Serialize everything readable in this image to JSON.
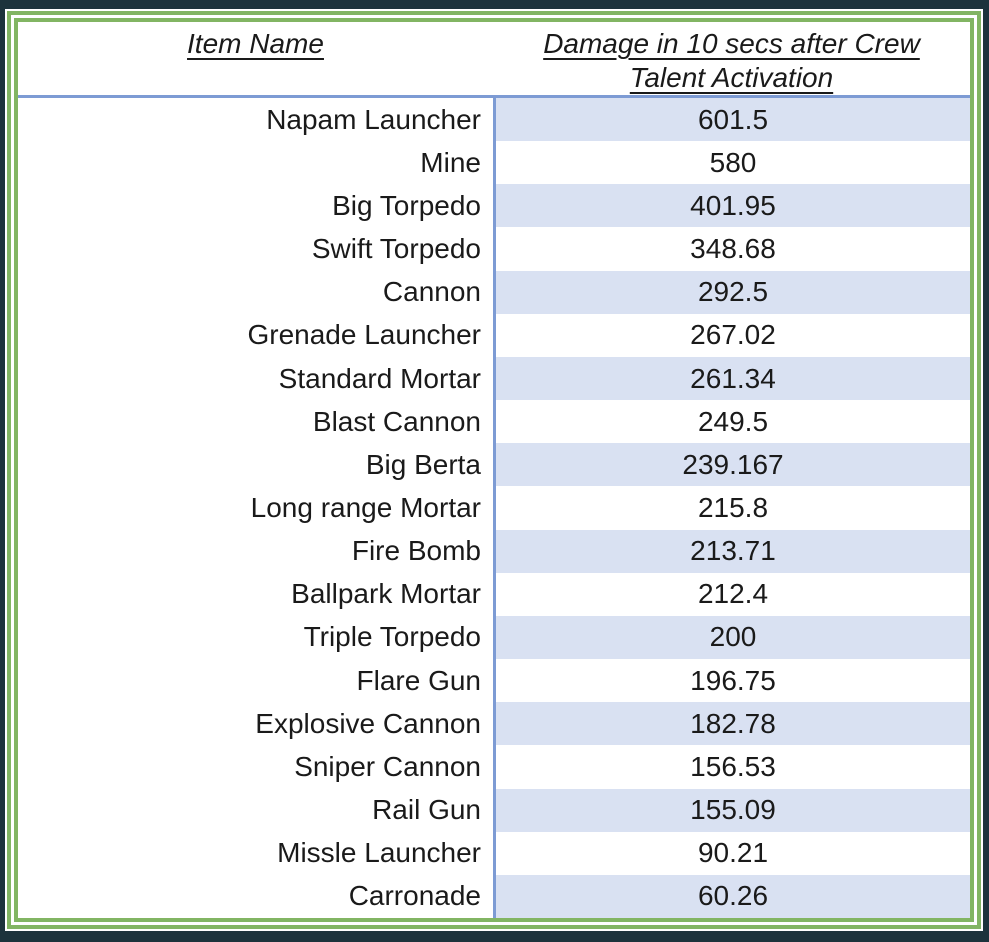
{
  "table": {
    "columns": [
      {
        "label": "Item Name"
      },
      {
        "label": "Damage in 10 secs after Crew Talent Activation"
      }
    ],
    "rows": [
      {
        "name": "Napam Launcher",
        "value": "601.5"
      },
      {
        "name": "Mine",
        "value": "580"
      },
      {
        "name": "Big Torpedo",
        "value": "401.95"
      },
      {
        "name": "Swift Torpedo",
        "value": "348.68"
      },
      {
        "name": "Cannon",
        "value": "292.5"
      },
      {
        "name": "Grenade Launcher",
        "value": "267.02"
      },
      {
        "name": "Standard Mortar",
        "value": "261.34"
      },
      {
        "name": "Blast Cannon",
        "value": "249.5"
      },
      {
        "name": "Big Berta",
        "value": "239.167"
      },
      {
        "name": "Long range Mortar",
        "value": "215.8"
      },
      {
        "name": "Fire Bomb",
        "value": "213.71"
      },
      {
        "name": "Ballpark Mortar",
        "value": "212.4"
      },
      {
        "name": "Triple Torpedo",
        "value": "200"
      },
      {
        "name": "Flare Gun",
        "value": "196.75"
      },
      {
        "name": "Explosive Cannon",
        "value": "182.78"
      },
      {
        "name": "Sniper Cannon",
        "value": "156.53"
      },
      {
        "name": "Rail Gun",
        "value": "155.09"
      },
      {
        "name": "Missle Launcher",
        "value": "90.21"
      },
      {
        "name": "Carronade",
        "value": "60.26"
      }
    ]
  },
  "chart_data": {
    "type": "table",
    "title": "Damage in 10 secs after Crew Talent Activation",
    "columns": [
      "Item Name",
      "Damage in 10 secs after Crew Talent Activation"
    ],
    "categories": [
      "Napam Launcher",
      "Mine",
      "Big Torpedo",
      "Swift Torpedo",
      "Cannon",
      "Grenade Launcher",
      "Standard Mortar",
      "Blast Cannon",
      "Big Berta",
      "Long range Mortar",
      "Fire Bomb",
      "Ballpark Mortar",
      "Triple Torpedo",
      "Flare Gun",
      "Explosive Cannon",
      "Sniper Cannon",
      "Rail Gun",
      "Missle Launcher",
      "Carronade"
    ],
    "values": [
      601.5,
      580,
      401.95,
      348.68,
      292.5,
      267.02,
      261.34,
      249.5,
      239.167,
      215.8,
      213.71,
      212.4,
      200,
      196.75,
      182.78,
      156.53,
      155.09,
      90.21,
      60.26
    ],
    "layout_hints": {
      "banding": "alternate rows shaded in value column",
      "sort": "descending by value"
    }
  },
  "colors": {
    "background_dark": "#1d333c",
    "frame_green": "#82b563",
    "divider_blue": "#7d9bd4",
    "band_blue": "#d9e1f2",
    "text": "#1a1a1a"
  }
}
